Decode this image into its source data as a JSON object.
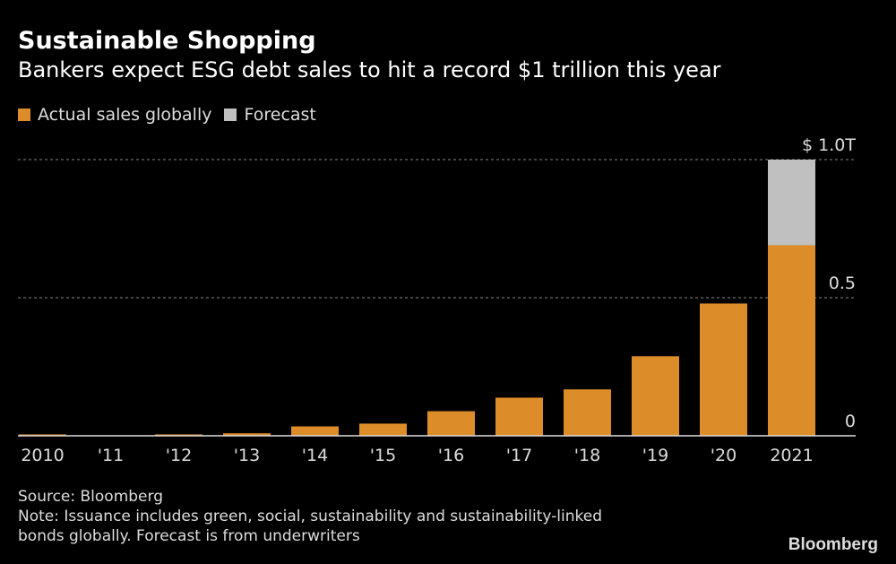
{
  "title": "Sustainable Shopping",
  "subtitle": "Bankers expect ESG debt sales to hit a record $1 trillion this year",
  "colors": {
    "actual": "#dc8c28",
    "forecast": "#c0c0c0",
    "background": "#000000"
  },
  "source": "Source: Bloomberg",
  "note_line1": "Note: Issuance includes green, social, sustainability and sustainability-linked",
  "note_line2": "bonds globally. Forecast is from underwriters",
  "logo": "Bloomberg",
  "chart_data": {
    "type": "bar",
    "stacked": true,
    "title": "Sustainable Shopping",
    "subtitle": "Bankers expect ESG debt sales to hit a record $1 trillion this year",
    "categories": [
      "2010",
      "'11",
      "'12",
      "'13",
      "'14",
      "'15",
      "'16",
      "'17",
      "'18",
      "'19",
      "'20",
      "2021"
    ],
    "series": [
      {
        "name": "Actual sales globally",
        "values": [
          0.005,
          0.001,
          0.005,
          0.009,
          0.034,
          0.044,
          0.089,
          0.138,
          0.168,
          0.288,
          0.479,
          0.69
        ]
      },
      {
        "name": "Forecast",
        "values": [
          0,
          0,
          0,
          0,
          0,
          0,
          0,
          0,
          0,
          0,
          0,
          0.31
        ]
      }
    ],
    "ylim": [
      0,
      1.0
    ],
    "yticks": [
      0,
      0.5,
      1.0
    ],
    "ytick_labels": [
      "0",
      "0.5",
      "$ 1.0T"
    ],
    "y_axis_side": "right",
    "grid": "horizontal dotted",
    "legend": "top-left"
  }
}
